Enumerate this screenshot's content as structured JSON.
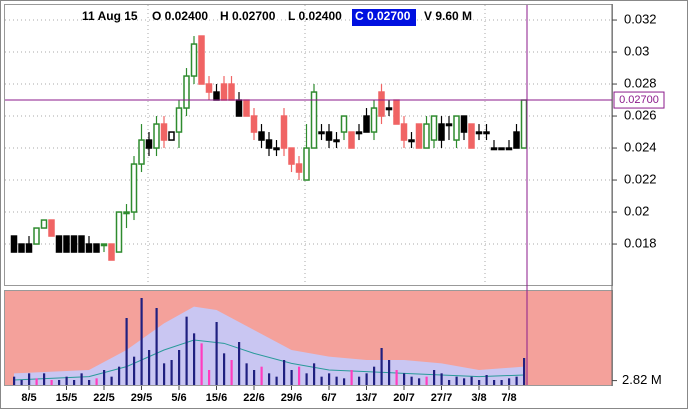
{
  "header": {
    "date": "11 Aug 15",
    "open": "O 0.02400",
    "high": "H 0.02700",
    "low": "L 0.02400",
    "close": "C 0.02700",
    "volume": "V 9.60 M"
  },
  "chart_data": [
    {
      "type": "candlestick",
      "categories": [
        null,
        null,
        "8/5",
        null,
        null,
        null,
        null,
        "15/5",
        null,
        null,
        null,
        null,
        "22/5",
        null,
        null,
        null,
        null,
        "29/5",
        null,
        null,
        null,
        null,
        "5/6",
        null,
        null,
        null,
        null,
        "15/6",
        null,
        null,
        null,
        null,
        "22/6",
        null,
        null,
        null,
        null,
        "29/6",
        null,
        null,
        null,
        null,
        "6/7",
        null,
        null,
        null,
        null,
        "13/7",
        null,
        null,
        null,
        null,
        "20/7",
        null,
        null,
        null,
        null,
        "27/7",
        null,
        null,
        null,
        null,
        "3/8",
        null,
        null,
        null,
        "7/8",
        null,
        null
      ],
      "open": [
        0.0185,
        0.018,
        0.018,
        0.018,
        0.019,
        0.0195,
        0.0185,
        0.0185,
        0.0185,
        0.0185,
        0.018,
        0.018,
        0.018,
        0.018,
        0.0175,
        0.02,
        0.02,
        0.023,
        0.0245,
        0.024,
        0.0255,
        0.0245,
        0.025,
        0.0265,
        0.0285,
        0.031,
        0.028,
        0.0275,
        0.028,
        0.028,
        0.027,
        0.027,
        0.026,
        0.025,
        0.0245,
        0.024,
        0.026,
        0.024,
        0.023,
        0.022,
        0.024,
        0.025,
        0.025,
        0.0245,
        0.025,
        0.025,
        0.025,
        0.026,
        0.025,
        0.0275,
        0.0265,
        0.027,
        0.0255,
        0.0245,
        0.0255,
        0.024,
        0.0245,
        0.0255,
        0.0255,
        0.0245,
        0.026,
        0.0255,
        0.025,
        0.025,
        0.024,
        0.024,
        0.024,
        0.025,
        0.024
      ],
      "high": [
        0.0185,
        0.018,
        0.0185,
        0.019,
        0.0195,
        0.0195,
        0.0185,
        0.0185,
        0.0185,
        0.0185,
        0.0185,
        0.018,
        0.018,
        0.018,
        0.02,
        0.0205,
        0.0235,
        0.0255,
        0.025,
        0.026,
        0.026,
        0.025,
        0.027,
        0.029,
        0.031,
        0.031,
        0.0285,
        0.028,
        0.0285,
        0.0285,
        0.0275,
        0.027,
        0.0265,
        0.0255,
        0.025,
        0.0245,
        0.0265,
        0.024,
        0.0235,
        0.0255,
        0.028,
        0.0255,
        0.0255,
        0.025,
        0.026,
        0.025,
        0.0255,
        0.0265,
        0.027,
        0.028,
        0.027,
        0.027,
        0.026,
        0.025,
        0.0255,
        0.026,
        0.026,
        0.026,
        0.026,
        0.026,
        0.026,
        0.0255,
        0.0255,
        0.0255,
        0.0245,
        0.024,
        0.0245,
        0.0255,
        0.027
      ],
      "low": [
        0.0175,
        0.0175,
        0.0175,
        0.018,
        0.019,
        0.0185,
        0.0175,
        0.0175,
        0.0175,
        0.0175,
        0.0175,
        0.0175,
        0.0175,
        0.017,
        0.0175,
        0.019,
        0.0195,
        0.0225,
        0.0235,
        0.0235,
        0.024,
        0.0245,
        0.024,
        0.026,
        0.028,
        0.028,
        0.027,
        0.027,
        0.027,
        0.027,
        0.026,
        0.026,
        0.0245,
        0.024,
        0.0235,
        0.0235,
        0.0235,
        0.0225,
        0.022,
        0.022,
        0.024,
        0.0245,
        0.024,
        0.024,
        0.0245,
        0.024,
        0.0245,
        0.025,
        0.0245,
        0.0255,
        0.026,
        0.0255,
        0.024,
        0.024,
        0.024,
        0.024,
        0.024,
        0.024,
        0.0245,
        0.024,
        0.0245,
        0.024,
        0.0245,
        0.0245,
        0.024,
        0.024,
        0.024,
        0.024,
        0.024
      ],
      "close": [
        0.0175,
        0.0175,
        0.0175,
        0.019,
        0.0195,
        0.0185,
        0.0175,
        0.0175,
        0.0175,
        0.0175,
        0.0175,
        0.0175,
        0.018,
        0.017,
        0.02,
        0.02,
        0.023,
        0.0245,
        0.024,
        0.0255,
        0.0245,
        0.025,
        0.0265,
        0.0285,
        0.0305,
        0.028,
        0.0275,
        0.027,
        0.027,
        0.027,
        0.026,
        0.026,
        0.025,
        0.0245,
        0.024,
        0.024,
        0.024,
        0.023,
        0.0225,
        0.024,
        0.0275,
        0.025,
        0.0245,
        0.0245,
        0.026,
        0.024,
        0.025,
        0.025,
        0.0265,
        0.026,
        0.0265,
        0.0255,
        0.0245,
        0.0245,
        0.024,
        0.0255,
        0.026,
        0.0245,
        0.0255,
        0.026,
        0.025,
        0.024,
        0.025,
        0.025,
        0.024,
        0.024,
        0.024,
        0.024,
        0.027
      ],
      "colors": [
        "#000000",
        "#000000",
        "#000000",
        "#2e8b2e",
        "#2e8b2e",
        "#f06464",
        "#000000",
        "#000000",
        "#000000",
        "#000000",
        "#000000",
        "#000000",
        "#2e8b2e",
        "#f06464",
        "#2e8b2e",
        "#2e8b2e",
        "#2e8b2e",
        "#2e8b2e",
        "#000000",
        "#2e8b2e",
        "#f06464",
        "#000000",
        "#2e8b2e",
        "#2e8b2e",
        "#2e8b2e",
        "#f06464",
        "#f06464",
        "#000000",
        "#f06464",
        "#f06464",
        "#000000",
        "#f06464",
        "#f06464",
        "#000000",
        "#000000",
        "#000000",
        "#f06464",
        "#f06464",
        "#f06464",
        "#2e8b2e",
        "#2e8b2e",
        "#000000",
        "#000000",
        "#000000",
        "#2e8b2e",
        "#f06464",
        "#000000",
        "#000000",
        "#2e8b2e",
        "#f06464",
        "#000000",
        "#f06464",
        "#f06464",
        "#000000",
        "#f06464",
        "#2e8b2e",
        "#2e8b2e",
        "#000000",
        "#000000",
        "#2e8b2e",
        "#000000",
        "#f06464",
        "#000000",
        "#000000",
        "#000000",
        "#000000",
        "#000000",
        "#000000",
        "#2e8b2e"
      ],
      "ylim": [
        0.01544,
        0.03294
      ],
      "yticks": [
        0.018,
        0.02,
        0.022,
        0.024,
        0.026,
        0.028,
        0.03,
        0.032
      ],
      "grid": true,
      "crosshair": {
        "value": 0.027,
        "label": "0.02700"
      },
      "crosshair_color": "#8b1a8b"
    },
    {
      "type": "bar",
      "values": [
        4,
        3,
        5,
        3.5,
        5,
        3,
        3,
        4,
        3,
        5,
        3,
        3.5,
        6,
        4,
        7,
        21.6,
        10,
        27.6,
        12,
        24.6,
        8,
        9,
        12,
        22,
        17,
        14,
        6,
        20.4,
        11,
        9,
        14.4,
        8,
        6,
        7,
        5,
        4,
        9,
        6,
        7,
        5,
        8,
        4,
        5,
        4,
        3.5,
        6,
        4,
        5,
        7,
        12.6,
        9,
        6,
        5,
        4,
        3.5,
        4,
        6,
        5,
        3,
        4,
        3.5,
        4,
        3,
        4.5,
        3,
        3,
        3.5,
        4,
        9.6
      ],
      "colors": [
        "#202080",
        "#202080",
        "#202080",
        "#ff3dbf",
        "#202080",
        "#ff3dbf",
        "#202080",
        "#202080",
        "#202080",
        "#202080",
        "#202080",
        "#ff3dbf",
        "#202080",
        "#202080",
        "#202080",
        "#202080",
        "#202080",
        "#202080",
        "#202080",
        "#202080",
        "#202080",
        "#202080",
        "#202080",
        "#202080",
        "#202080",
        "#ff3dbf",
        "#ff3dbf",
        "#202080",
        "#202080",
        "#ff3dbf",
        "#202080",
        "#202080",
        "#202080",
        "#ff3dbf",
        "#202080",
        "#202080",
        "#202080",
        "#202080",
        "#ff3dbf",
        "#202080",
        "#202080",
        "#202080",
        "#202080",
        "#202080",
        "#202080",
        "#ff3dbf",
        "#202080",
        "#202080",
        "#202080",
        "#202080",
        "#202080",
        "#ff3dbf",
        "#202080",
        "#202080",
        "#202080",
        "#ff3dbf",
        "#202080",
        "#202080",
        "#202080",
        "#202080",
        "#202080",
        "#202080",
        "#202080",
        "#202080",
        "#202080",
        "#202080",
        "#202080",
        "#202080",
        "#202080"
      ],
      "ylim": [
        1.5,
        30
      ],
      "yticks": [
        {
          "value": 2.82,
          "label": "2.82 M"
        }
      ],
      "background": "#f4a19b",
      "band": {
        "x": [
          0,
          10,
          15,
          20,
          24,
          27,
          32,
          37,
          42,
          47,
          52,
          57,
          62,
          68
        ],
        "values": [
          5,
          6,
          12,
          20,
          25,
          24,
          18,
          12,
          10,
          9,
          9,
          8,
          6,
          7
        ],
        "color": "#c9c6f2"
      },
      "line": {
        "x": [
          0,
          10,
          15,
          20,
          24,
          28,
          32,
          37,
          42,
          47,
          52,
          57,
          62,
          68
        ],
        "values": [
          3,
          4,
          7,
          12,
          15,
          14,
          11,
          8,
          6,
          5.5,
          5,
          4.5,
          4,
          4.5
        ],
        "color": "#2a9a9a"
      }
    }
  ]
}
